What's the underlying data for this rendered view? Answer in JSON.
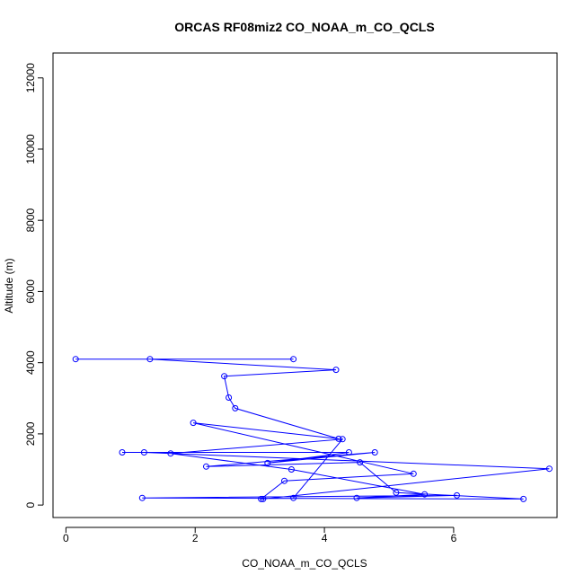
{
  "chart_data": {
    "type": "line",
    "title": "ORCAS RF08miz2 CO_NOAA_m_CO_QCLS",
    "xlabel": "CO_NOAA_m_CO_QCLS",
    "ylabel": "Altitude (m)",
    "xlim": [
      -0.2,
      7.6
    ],
    "ylim": [
      -350,
      12700
    ],
    "x_ticks": [
      0,
      2,
      4,
      6
    ],
    "y_ticks": [
      0,
      2000,
      4000,
      6000,
      8000,
      10000,
      12000
    ],
    "grid": false,
    "legend": "none",
    "series_color": "#0000ff",
    "series": [
      {
        "marker": "open-circle",
        "line": true,
        "x": [
          3.52,
          0.15,
          1.3,
          4.18,
          2.45,
          2.52,
          2.62,
          4.22,
          1.97,
          5.38,
          3.38,
          3.02,
          3.05,
          7.48,
          1.21,
          0.87,
          4.38,
          3.12,
          4.78,
          2.17,
          4.55,
          5.11,
          7.08,
          1.18,
          6.05,
          4.5,
          5.55,
          3.49,
          1.62,
          4.28,
          3.52
        ],
        "y": [
          4100,
          4100,
          4100,
          3800,
          3620,
          3020,
          2720,
          1860,
          2310,
          880,
          680,
          170,
          170,
          1020,
          1480,
          1480,
          1480,
          1180,
          1480,
          1080,
          1200,
          350,
          170,
          200,
          270,
          200,
          300,
          1000,
          1450,
          1850,
          200
        ]
      }
    ]
  }
}
